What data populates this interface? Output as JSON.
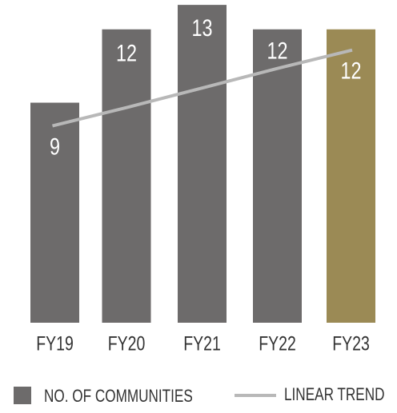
{
  "chart_data": {
    "type": "bar",
    "categories": [
      "FY19",
      "FY20",
      "FY21",
      "FY22",
      "FY23"
    ],
    "series": [
      {
        "name": "NO. OF COMMUNITIES",
        "colors": [
          "#6d6b6b",
          "#6d6b6b",
          "#6d6b6b",
          "#6d6b6b",
          "#9b8a55"
        ],
        "color": "#6d6b6b",
        "values": [
          9,
          12,
          13,
          12,
          12
        ]
      },
      {
        "name": "LINEAR TREND",
        "type": "line",
        "color": "#b8b8b8",
        "values": [
          8.05,
          8.8,
          9.6,
          10.4,
          11.15
        ]
      }
    ],
    "ylim": [
      0,
      13.2
    ]
  }
}
